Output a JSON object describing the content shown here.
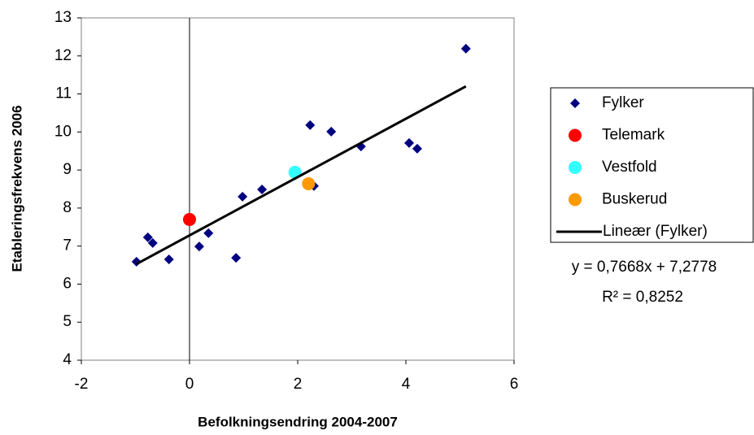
{
  "chart_data": {
    "type": "scatter",
    "xlabel": "Befolkningsendring 2004-2007",
    "ylabel": "Etableringsfrekvens 2006",
    "xlim": [
      -2,
      6
    ],
    "xticks": [
      -2,
      0,
      2,
      4,
      6
    ],
    "ylim": [
      4,
      13
    ],
    "yticks": [
      4,
      5,
      6,
      7,
      8,
      9,
      10,
      11,
      12,
      13
    ],
    "grid": false,
    "legend": "right",
    "series": [
      {
        "name": "Fylker",
        "color": "#000080",
        "marker": "diamond",
        "x": [
          -0.98,
          -0.77,
          -0.68,
          -0.38,
          0.18,
          0.35,
          0.86,
          0.98,
          1.34,
          2.23,
          2.3,
          2.62,
          3.17,
          4.06,
          4.21,
          5.11
        ],
        "values": [
          6.59,
          7.23,
          7.08,
          6.65,
          6.99,
          7.34,
          6.69,
          8.3,
          8.49,
          10.18,
          8.58,
          10.01,
          9.62,
          9.71,
          9.56,
          12.19
        ]
      },
      {
        "name": "Telemark",
        "color": "#ff0000",
        "marker": "circle",
        "x": [
          0
        ],
        "values": [
          7.7
        ]
      },
      {
        "name": "Vestfold",
        "color": "#33ffff",
        "marker": "circle",
        "x": [
          1.95
        ],
        "values": [
          8.94
        ]
      },
      {
        "name": "Buskerud",
        "color": "#ff9900",
        "marker": "circle",
        "x": [
          2.2
        ],
        "values": [
          8.64
        ]
      },
      {
        "name": "Lineær (Fylker)",
        "color": "#000000",
        "marker": "line",
        "x": [
          -0.98,
          5.11
        ],
        "values": [
          6.53,
          11.2
        ]
      }
    ],
    "equation": "y = 0,7668x + 7,2778",
    "r_squared": "R² = 0,8252"
  }
}
